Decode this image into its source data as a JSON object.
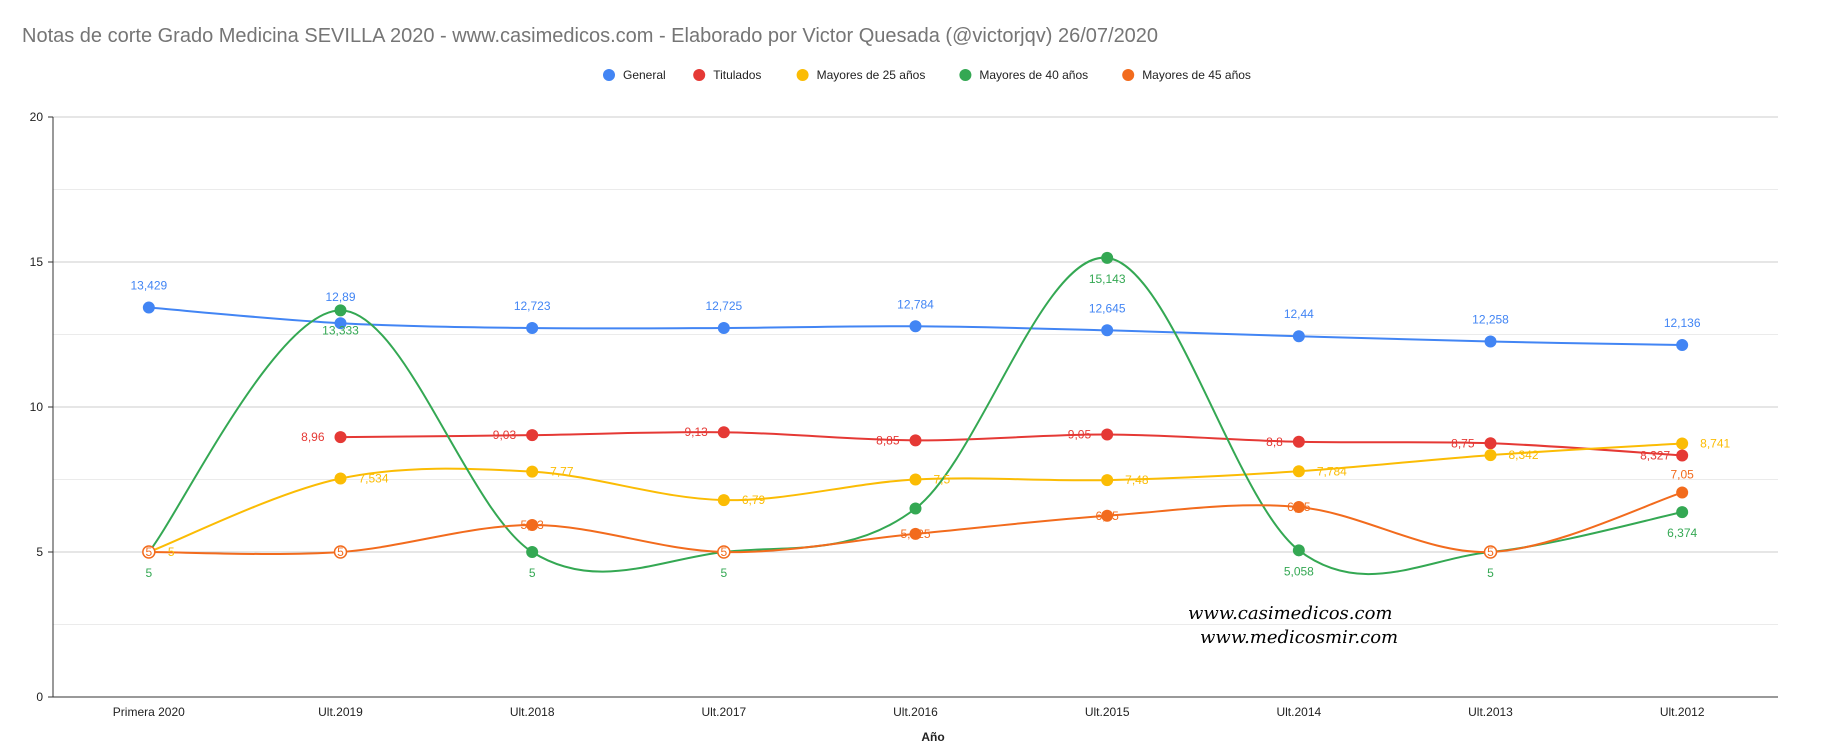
{
  "chart_data": {
    "type": "line",
    "title": "Notas de corte Grado Medicina SEVILLA 2020 - www.casimedicos.com - Elaborado por Victor Quesada (@victorjqv)  26/07/2020",
    "xlabel": "Año",
    "ylabel": "",
    "ylim": [
      0,
      20
    ],
    "yticks": [
      "0",
      "5",
      "10",
      "15",
      "20"
    ],
    "grid": true,
    "legend_position": "top-center",
    "categories": [
      "Primera 2020",
      "Ult.2019",
      "Ult.2018",
      "Ult.2017",
      "Ult.2016",
      "Ult.2015",
      "Ult.2014",
      "Ult.2013",
      "Ult.2012"
    ],
    "series": [
      {
        "name": "General",
        "color": "#4285f4",
        "values": [
          13.429,
          12.89,
          12.723,
          12.725,
          12.784,
          12.645,
          12.44,
          12.258,
          12.136
        ],
        "labels": [
          "13,429",
          "12,89",
          "12,723",
          "12,725",
          "12,784",
          "12,645",
          "12,44",
          "12,258",
          "12,136"
        ]
      },
      {
        "name": "Titulados",
        "color": "#e53935",
        "values": [
          null,
          8.96,
          9.03,
          9.13,
          8.85,
          9.05,
          8.8,
          8.75,
          8.327
        ],
        "labels": [
          null,
          "8,96",
          "9,03",
          "9,13",
          "8,85",
          "9,05",
          "8,8",
          "8,75",
          "8,327"
        ]
      },
      {
        "name": "Mayores de 25 años",
        "color": "#fbbc04",
        "values": [
          5,
          7.534,
          7.77,
          6.79,
          7.5,
          7.48,
          7.784,
          8.342,
          8.741
        ],
        "labels": [
          "5",
          "7,534",
          "7,77",
          "6,79",
          "7,5",
          "7,48",
          "7,784",
          "8,342",
          "8,741"
        ]
      },
      {
        "name": "Mayores de 40 años",
        "color": "#34a853",
        "values": [
          5,
          13.333,
          5,
          5,
          6.5,
          15.143,
          5.058,
          5,
          6.374
        ],
        "labels": [
          "5",
          "13,333",
          "5",
          "5",
          null,
          "15,143",
          "5,058",
          "5",
          "6,374"
        ]
      },
      {
        "name": "Mayores de 45 años",
        "color": "#f26b1d",
        "values": [
          5,
          5,
          5.93,
          5,
          5.625,
          6.25,
          6.55,
          5,
          7.05
        ],
        "labels": [
          "5",
          "5",
          "5,93",
          "5",
          "5,625",
          "6,25",
          "6,55",
          "5",
          "7,05"
        ]
      }
    ],
    "watermarks": [
      "www.casimedicos.com",
      "www.medicosmir.com"
    ]
  }
}
